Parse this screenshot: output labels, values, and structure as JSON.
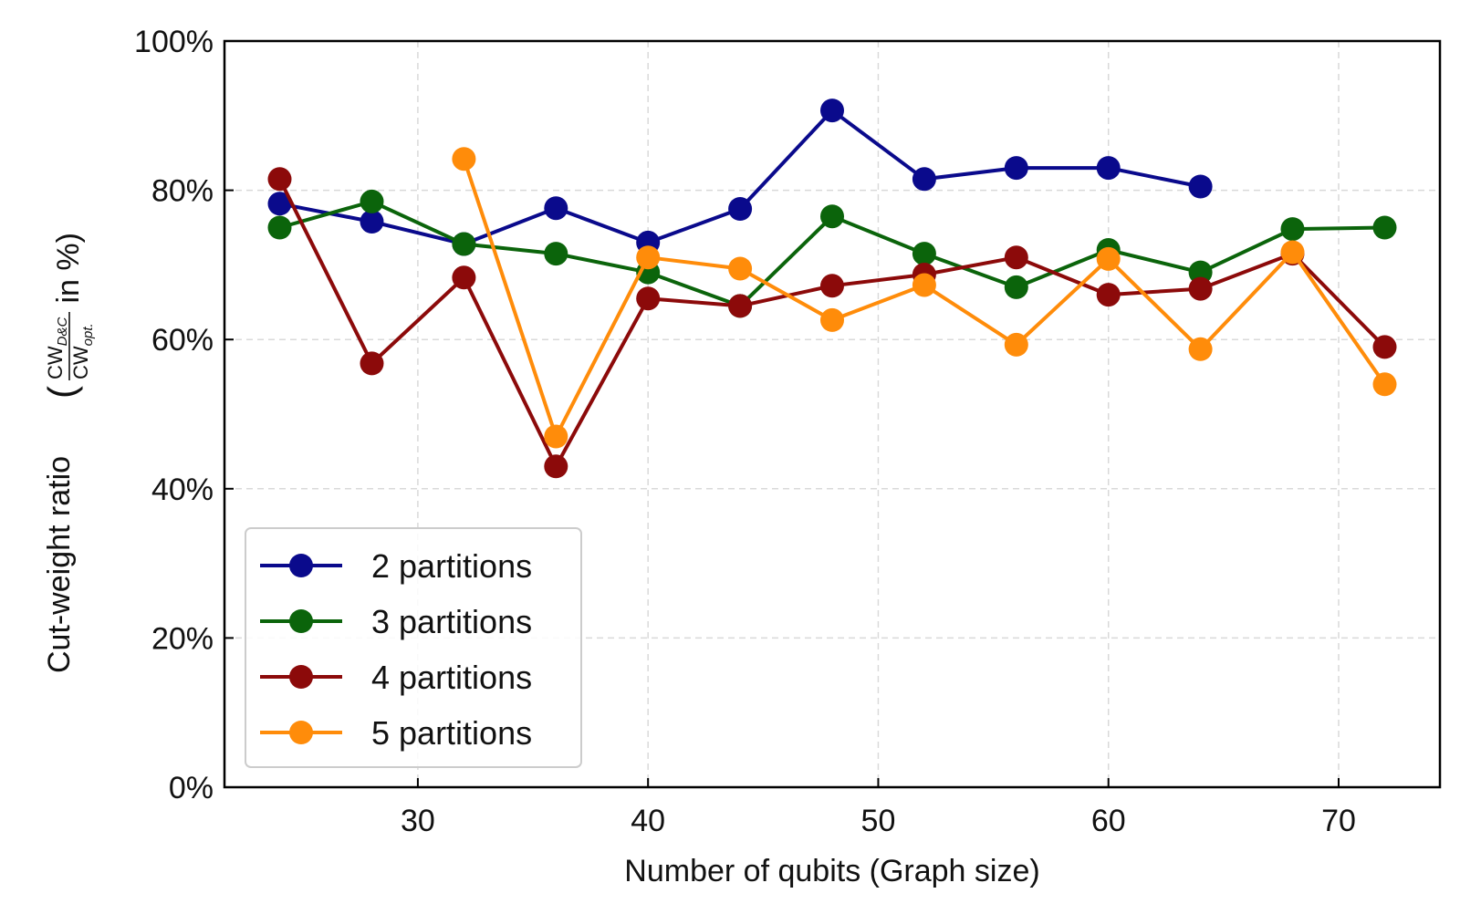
{
  "chart_data": {
    "type": "line",
    "xlabel": "Number of qubits (Graph size)",
    "ylabel": "Cut-weight ratio",
    "ylabel_fraction": {
      "open": "(",
      "numerator": "CW",
      "numerator_sub": "D&C",
      "denominator": "CW",
      "denominator_sub": "opt.",
      "suffix": " in %)"
    },
    "xlim": [
      21.6,
      74.4
    ],
    "ylim": [
      0,
      100
    ],
    "x_ticks": [
      30,
      40,
      50,
      60,
      70
    ],
    "x_tick_labels": [
      "30",
      "40",
      "50",
      "60",
      "70"
    ],
    "y_ticks": [
      0,
      20,
      40,
      60,
      80,
      100
    ],
    "y_tick_labels": [
      "0%",
      "20%",
      "40%",
      "60%",
      "80%",
      "100%"
    ],
    "grid": true,
    "legend_position": "lower-left",
    "series": [
      {
        "name": "2 partitions",
        "color": "#0a0a8c",
        "x": [
          24,
          28,
          32,
          36,
          40,
          44,
          48,
          52,
          56,
          60,
          64
        ],
        "y": [
          78.2,
          75.8,
          72.8,
          77.6,
          73.0,
          77.5,
          90.7,
          81.5,
          83.0,
          83.0,
          80.5
        ]
      },
      {
        "name": "3 partitions",
        "color": "#0b640b",
        "x": [
          24,
          28,
          32,
          36,
          40,
          44,
          48,
          52,
          56,
          60,
          64,
          68,
          72
        ],
        "y": [
          75.0,
          78.5,
          72.8,
          71.5,
          69.0,
          64.5,
          76.5,
          71.5,
          67.0,
          72.0,
          69.0,
          74.8,
          75.0
        ]
      },
      {
        "name": "4 partitions",
        "color": "#8c0a0a",
        "x": [
          24,
          28,
          32,
          36,
          40,
          44,
          48,
          52,
          56,
          60,
          64,
          68,
          72
        ],
        "y": [
          81.5,
          56.8,
          68.3,
          43.0,
          65.5,
          64.5,
          67.2,
          68.7,
          71.0,
          66.0,
          66.8,
          71.5,
          59.0
        ]
      },
      {
        "name": "5 partitions",
        "color": "#ff8c0a",
        "x": [
          32,
          36,
          40,
          44,
          48,
          52,
          56,
          60,
          64,
          68,
          72
        ],
        "y": [
          84.2,
          47.0,
          71.0,
          69.5,
          62.6,
          67.3,
          59.3,
          70.8,
          58.7,
          71.7,
          54.0
        ]
      }
    ]
  }
}
